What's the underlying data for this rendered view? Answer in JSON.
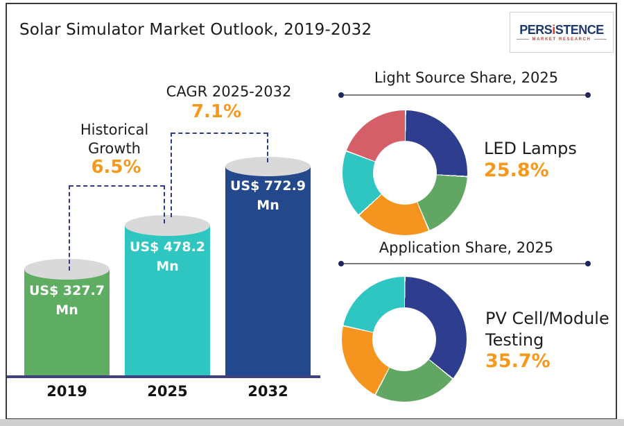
{
  "title": "Solar Simulator Market Outlook, 2019-2032",
  "logo": {
    "brand_pre": "PERS",
    "brand_i": "i",
    "brand_post": "STENCE",
    "tagline": "MARKET RESEARCH"
  },
  "colors": {
    "accent_orange": "#f5991d",
    "dash_navy": "#2b3990",
    "axis_navy": "#3e4180",
    "cylinder_top_gray": "#d9d9d9",
    "bar_green": "#5fad63",
    "bar_teal": "#2fc5c1",
    "bar_navy": "#24488c",
    "donut_navy": "#2e3d8d",
    "donut_green": "#61a763",
    "donut_orange": "#f5951f",
    "donut_teal": "#2fc5c1",
    "donut_red": "#d55f68"
  },
  "chart_data": [
    {
      "type": "bar",
      "title": "Solar Simulator Market Outlook, 2019-2032",
      "categories": [
        "2019",
        "2025",
        "2032"
      ],
      "values": [
        327.7,
        478.2,
        772.9
      ],
      "unit": "US$ Mn",
      "value_labels": [
        "US$ 327.7 Mn",
        "US$ 478.2 Mn",
        "US$ 772.9 Mn"
      ],
      "bar_colors": [
        "#5fad63",
        "#2fc5c1",
        "#24488c"
      ],
      "bar_style": "cylinder",
      "annotations": [
        {
          "label": "Historical Growth",
          "value": "6.5%",
          "span": [
            "2019",
            "2025"
          ]
        },
        {
          "label": "CAGR 2025-2032",
          "value": "7.1%",
          "span": [
            "2025",
            "2032"
          ]
        }
      ]
    },
    {
      "type": "pie",
      "donut": true,
      "title": "Light Source Share, 2025",
      "highlight": {
        "label": "LED Lamps",
        "value": "25.8%"
      },
      "slices": [
        {
          "label": "LED Lamps",
          "value": 25.8,
          "color": "#2e3d8d"
        },
        {
          "value": 17.7,
          "color": "#61a763"
        },
        {
          "value": 19.5,
          "color": "#f5951f"
        },
        {
          "value": 17.5,
          "color": "#2fc5c1"
        },
        {
          "value": 19.5,
          "color": "#d55f68"
        }
      ]
    },
    {
      "type": "pie",
      "donut": true,
      "title": "Application Share, 2025",
      "highlight": {
        "label": "PV Cell/Module Testing",
        "value": "35.7%"
      },
      "slices": [
        {
          "label": "PV Cell/Module Testing",
          "value": 35.7,
          "color": "#2e3d8d"
        },
        {
          "value": 21.8,
          "color": "#61a763"
        },
        {
          "value": 20.8,
          "color": "#f5951f"
        },
        {
          "value": 21.7,
          "color": "#2fc5c1"
        }
      ]
    }
  ]
}
